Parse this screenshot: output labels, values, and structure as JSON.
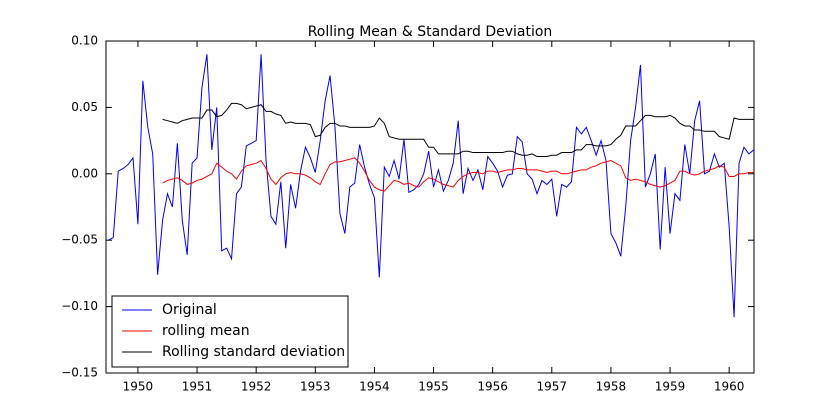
{
  "chart_data": {
    "type": "line",
    "title": "Rolling Mean & Standard Deviation",
    "x": [
      1949.5,
      1949.583,
      1949.667,
      1949.75,
      1949.833,
      1949.917,
      1950.0,
      1950.083,
      1950.167,
      1950.25,
      1950.333,
      1950.417,
      1950.5,
      1950.583,
      1950.667,
      1950.75,
      1950.833,
      1950.917,
      1951.0,
      1951.083,
      1951.167,
      1951.25,
      1951.333,
      1951.417,
      1951.5,
      1951.583,
      1951.667,
      1951.75,
      1951.833,
      1951.917,
      1952.0,
      1952.083,
      1952.167,
      1952.25,
      1952.333,
      1952.417,
      1952.5,
      1952.583,
      1952.667,
      1952.75,
      1952.833,
      1952.917,
      1953.0,
      1953.083,
      1953.167,
      1953.25,
      1953.333,
      1953.417,
      1953.5,
      1953.583,
      1953.667,
      1953.75,
      1953.833,
      1953.917,
      1954.0,
      1954.083,
      1954.167,
      1954.25,
      1954.333,
      1954.417,
      1954.5,
      1954.583,
      1954.667,
      1954.75,
      1954.833,
      1954.917,
      1955.0,
      1955.083,
      1955.167,
      1955.25,
      1955.333,
      1955.417,
      1955.5,
      1955.583,
      1955.667,
      1955.75,
      1955.833,
      1955.917,
      1956.0,
      1956.083,
      1956.167,
      1956.25,
      1956.333,
      1956.417,
      1956.5,
      1956.583,
      1956.667,
      1956.75,
      1956.833,
      1956.917,
      1957.0,
      1957.083,
      1957.167,
      1957.25,
      1957.333,
      1957.417,
      1957.5,
      1957.583,
      1957.667,
      1957.75,
      1957.833,
      1957.917,
      1958.0,
      1958.083,
      1958.167,
      1958.25,
      1958.333,
      1958.417,
      1958.5,
      1958.583,
      1958.667,
      1958.75,
      1958.833,
      1958.917,
      1959.0,
      1959.083,
      1959.167,
      1959.25,
      1959.333,
      1959.417,
      1959.5,
      1959.583,
      1959.667,
      1959.75,
      1959.833,
      1959.917,
      1960.0,
      1960.083,
      1960.167,
      1960.25,
      1960.333,
      1960.417
    ],
    "series": [
      {
        "name": "Original",
        "color": "#0000ff",
        "values": [
          -0.05,
          -0.048,
          0.002,
          0.004,
          0.007,
          0.012,
          -0.038,
          0.07,
          0.035,
          0.015,
          -0.076,
          -0.035,
          -0.015,
          -0.025,
          0.023,
          -0.035,
          -0.061,
          0.008,
          0.012,
          0.065,
          0.09,
          0.018,
          0.05,
          -0.058,
          -0.056,
          -0.064,
          -0.015,
          -0.01,
          0.021,
          0.023,
          0.025,
          0.09,
          0.01,
          -0.032,
          -0.038,
          -0.006,
          -0.056,
          -0.008,
          -0.026,
          0.002,
          0.02,
          0.012,
          0.001,
          0.025,
          0.055,
          0.074,
          0.035,
          -0.03,
          -0.045,
          -0.01,
          -0.007,
          0.022,
          0.005,
          -0.008,
          -0.018,
          -0.078,
          0.005,
          -0.002,
          0.01,
          -0.004,
          0.026,
          -0.014,
          -0.012,
          -0.008,
          0.0,
          0.017,
          -0.01,
          0.003,
          -0.013,
          -0.005,
          0.008,
          0.04,
          -0.015,
          0.004,
          -0.005,
          0.003,
          -0.012,
          0.013,
          0.008,
          0.002,
          -0.01,
          -0.001,
          0.0,
          0.028,
          0.024,
          0.0,
          -0.004,
          -0.015,
          -0.005,
          -0.008,
          -0.004,
          -0.032,
          -0.008,
          -0.01,
          -0.006,
          0.035,
          0.03,
          0.035,
          0.025,
          0.014,
          0.025,
          0.01,
          -0.045,
          -0.052,
          -0.062,
          -0.025,
          0.025,
          0.05,
          0.082,
          -0.01,
          0.0,
          0.015,
          -0.057,
          0.005,
          -0.045,
          -0.015,
          -0.02,
          0.022,
          0.0,
          0.04,
          0.055,
          0.0,
          0.002,
          0.015,
          0.005,
          0.008,
          -0.04,
          -0.108,
          0.008,
          0.02,
          0.015,
          0.018
        ]
      },
      {
        "name": "rolling mean",
        "color": "#ff0000",
        "values": [
          null,
          null,
          null,
          null,
          null,
          null,
          null,
          null,
          null,
          null,
          null,
          -0.007,
          -0.005,
          -0.004,
          -0.003,
          -0.005,
          -0.008,
          -0.007,
          -0.005,
          -0.004,
          -0.002,
          0.0,
          0.008,
          0.005,
          0.002,
          0.0,
          -0.004,
          0.002,
          0.006,
          0.007,
          0.008,
          0.01,
          0.004,
          -0.004,
          -0.008,
          -0.003,
          0.0,
          0.001,
          0.0,
          0.0,
          -0.001,
          -0.003,
          -0.006,
          -0.008,
          0.0,
          0.007,
          0.009,
          0.009,
          0.01,
          0.011,
          0.012,
          0.008,
          0.002,
          -0.005,
          -0.01,
          -0.012,
          -0.013,
          -0.009,
          -0.005,
          -0.006,
          -0.008,
          -0.007,
          -0.009,
          -0.01,
          -0.006,
          -0.003,
          -0.004,
          -0.006,
          -0.008,
          -0.009,
          -0.01,
          -0.005,
          -0.002,
          0.0,
          0.001,
          0.001,
          0.0,
          0.002,
          0.002,
          0.001,
          0.002,
          0.003,
          0.003,
          0.004,
          0.004,
          0.003,
          0.003,
          0.003,
          0.002,
          0.001,
          0.002,
          0.002,
          0.0,
          0.0,
          0.001,
          0.002,
          0.003,
          0.003,
          0.005,
          0.006,
          0.008,
          0.009,
          0.01,
          0.008,
          0.006,
          -0.003,
          -0.005,
          -0.004,
          -0.005,
          -0.006,
          -0.008,
          -0.009,
          -0.01,
          -0.009,
          -0.007,
          -0.005,
          0.002,
          0.002,
          0.0,
          -0.001,
          0.0,
          0.002,
          0.003,
          0.004,
          0.006,
          0.005,
          -0.002,
          -0.002,
          0.0,
          0.0,
          0.001,
          0.001
        ]
      },
      {
        "name": "Rolling standard deviation",
        "color": "#000000",
        "values": [
          null,
          null,
          null,
          null,
          null,
          null,
          null,
          null,
          null,
          null,
          null,
          0.041,
          0.04,
          0.039,
          0.038,
          0.04,
          0.041,
          0.042,
          0.042,
          0.042,
          0.048,
          0.048,
          0.043,
          0.044,
          0.048,
          0.053,
          0.053,
          0.052,
          0.049,
          0.05,
          0.051,
          0.052,
          0.047,
          0.047,
          0.045,
          0.044,
          0.038,
          0.039,
          0.038,
          0.038,
          0.038,
          0.037,
          0.028,
          0.029,
          0.035,
          0.038,
          0.038,
          0.036,
          0.036,
          0.035,
          0.035,
          0.035,
          0.035,
          0.035,
          0.036,
          0.042,
          0.038,
          0.028,
          0.027,
          0.026,
          0.026,
          0.026,
          0.026,
          0.026,
          0.026,
          0.02,
          0.02,
          0.015,
          0.015,
          0.015,
          0.015,
          0.015,
          0.017,
          0.017,
          0.016,
          0.016,
          0.016,
          0.016,
          0.016,
          0.016,
          0.016,
          0.017,
          0.017,
          0.015,
          0.014,
          0.014,
          0.015,
          0.013,
          0.013,
          0.013,
          0.014,
          0.014,
          0.016,
          0.016,
          0.016,
          0.018,
          0.018,
          0.022,
          0.022,
          0.021,
          0.021,
          0.021,
          0.022,
          0.026,
          0.029,
          0.036,
          0.036,
          0.036,
          0.04,
          0.044,
          0.044,
          0.043,
          0.043,
          0.043,
          0.044,
          0.042,
          0.038,
          0.036,
          0.036,
          0.033,
          0.033,
          0.032,
          0.032,
          0.032,
          0.028,
          0.027,
          0.026,
          0.042,
          0.041,
          0.041,
          0.041,
          0.041
        ]
      }
    ],
    "xlim": [
      1949.46,
      1960.42
    ],
    "ylim": [
      -0.15,
      0.1
    ],
    "xticks": [
      1950,
      1951,
      1952,
      1953,
      1954,
      1955,
      1956,
      1957,
      1958,
      1959,
      1960
    ],
    "yticks": [
      {
        "value": -0.15,
        "label": "−0.15"
      },
      {
        "value": -0.1,
        "label": "−0.10"
      },
      {
        "value": -0.05,
        "label": "−0.05"
      },
      {
        "value": 0,
        "label": "0.00"
      },
      {
        "value": 0.05,
        "label": "0.05"
      },
      {
        "value": 0.1,
        "label": "0.10"
      }
    ],
    "grid": false,
    "legend": "lower left"
  }
}
